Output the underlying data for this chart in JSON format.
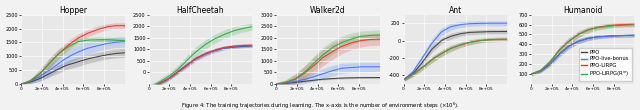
{
  "subplots": [
    {
      "title": "Hopper",
      "xlim": [
        0,
        1000000
      ],
      "ylim": [
        0,
        2500
      ],
      "yticks": [
        0,
        500,
        1000,
        1500,
        2000,
        2500
      ],
      "lines": {
        "PPO": {
          "color": "#444444",
          "mean": [
            0,
            80,
            200,
            380,
            550,
            700,
            800,
            900,
            980,
            1050,
            1100,
            1120
          ],
          "shade": [
            0,
            60,
            100,
            130,
            150,
            160,
            170,
            160,
            160,
            150,
            160,
            160
          ]
        },
        "PPO-live-bonus": {
          "color": "#4477ff",
          "mean": [
            0,
            100,
            280,
            500,
            750,
            980,
            1150,
            1280,
            1380,
            1450,
            1500,
            1520
          ],
          "shade": [
            0,
            80,
            150,
            200,
            230,
            250,
            240,
            220,
            200,
            190,
            190,
            190
          ]
        },
        "PPO-LIRPG": {
          "color": "#ee3333",
          "mean": [
            0,
            120,
            380,
            750,
            1100,
            1400,
            1650,
            1820,
            1950,
            2050,
            2100,
            2100
          ],
          "shade": [
            0,
            80,
            150,
            200,
            180,
            160,
            140,
            130,
            120,
            110,
            110,
            110
          ]
        },
        "PPO-LIRPG(Rin)": {
          "color": "#33aa44",
          "mean": [
            0,
            120,
            380,
            750,
            1100,
            1350,
            1520,
            1580,
            1600,
            1600,
            1580,
            1560
          ],
          "shade": [
            0,
            80,
            140,
            160,
            150,
            130,
            110,
            100,
            90,
            90,
            90,
            90
          ]
        }
      }
    },
    {
      "title": "HalfCheetah",
      "xlim": [
        0,
        1000000
      ],
      "ylim": [
        -500,
        2500
      ],
      "yticks": [
        0,
        500,
        1000,
        1500,
        2000,
        2500
      ],
      "lines": {
        "PPO": {
          "color": "#444444",
          "mean": [
            -650,
            -500,
            -300,
            0,
            300,
            600,
            800,
            950,
            1050,
            1100,
            1130,
            1150
          ],
          "shade": [
            30,
            40,
            50,
            60,
            70,
            70,
            70,
            60,
            60,
            60,
            60,
            60
          ]
        },
        "PPO-live-bonus": {
          "color": "#4477ff",
          "mean": [
            -650,
            -500,
            -300,
            0,
            300,
            600,
            800,
            950,
            1060,
            1120,
            1150,
            1160
          ],
          "shade": [
            80,
            90,
            100,
            110,
            120,
            120,
            110,
            100,
            90,
            85,
            80,
            80
          ]
        },
        "PPO-LIRPG": {
          "color": "#ee3333",
          "mean": [
            -650,
            -500,
            -300,
            0,
            300,
            600,
            820,
            970,
            1080,
            1140,
            1170,
            1180
          ],
          "shade": [
            50,
            60,
            70,
            80,
            90,
            90,
            80,
            70,
            65,
            60,
            60,
            60
          ]
        },
        "PPO-LIRPG(Rin)": {
          "color": "#33aa44",
          "mean": [
            -650,
            -450,
            -200,
            100,
            500,
            900,
            1200,
            1450,
            1650,
            1800,
            1900,
            1980
          ],
          "shade": [
            100,
            130,
            160,
            180,
            200,
            210,
            200,
            190,
            180,
            170,
            160,
            150
          ]
        }
      }
    },
    {
      "title": "Walker2d",
      "xlim": [
        0,
        1000000
      ],
      "ylim": [
        0,
        3000
      ],
      "yticks": [
        0,
        500,
        1000,
        1500,
        2000,
        2500,
        3000
      ],
      "lines": {
        "PPO": {
          "color": "#444444",
          "mean": [
            0,
            30,
            70,
            120,
            170,
            210,
            240,
            260,
            270,
            280,
            280,
            280
          ],
          "shade": [
            20,
            25,
            30,
            35,
            35,
            35,
            35,
            35,
            35,
            35,
            35,
            35
          ]
        },
        "PPO-live-bonus": {
          "color": "#4477ff",
          "mean": [
            0,
            40,
            100,
            200,
            320,
            450,
            580,
            680,
            720,
            740,
            740,
            740
          ],
          "shade": [
            60,
            100,
            150,
            180,
            200,
            220,
            230,
            220,
            200,
            200,
            200,
            200
          ]
        },
        "PPO-LIRPG": {
          "color": "#ee3333",
          "mean": [
            0,
            60,
            200,
            450,
            800,
            1150,
            1420,
            1630,
            1780,
            1870,
            1920,
            1940
          ],
          "shade": [
            60,
            120,
            220,
            310,
            350,
            360,
            350,
            320,
            290,
            270,
            260,
            260
          ]
        },
        "PPO-LIRPG(Rin)": {
          "color": "#33aa44",
          "mean": [
            0,
            70,
            230,
            520,
            900,
            1280,
            1580,
            1800,
            1960,
            2060,
            2100,
            2120
          ],
          "shade": [
            60,
            110,
            190,
            270,
            300,
            310,
            290,
            270,
            250,
            230,
            220,
            220
          ]
        }
      }
    },
    {
      "title": "Ant",
      "xlim": [
        0,
        1000000
      ],
      "ylim": [
        -500,
        300
      ],
      "yticks": [
        -400,
        -200,
        0,
        200
      ],
      "lines": {
        "PPO": {
          "color": "#444444",
          "mean": [
            -450,
            -380,
            -250,
            -100,
            0,
            50,
            80,
            95,
            100,
            105,
            105,
            105
          ],
          "shade": [
            20,
            25,
            30,
            35,
            35,
            35,
            30,
            25,
            25,
            25,
            25,
            25
          ]
        },
        "PPO-live-bonus": {
          "color": "#4477ff",
          "mean": [
            -450,
            -360,
            -200,
            -30,
            100,
            160,
            185,
            195,
            200,
            200,
            200,
            200
          ],
          "shade": [
            20,
            30,
            40,
            45,
            45,
            40,
            35,
            30,
            28,
            28,
            28,
            28
          ]
        },
        "PPO-LIRPG": {
          "color": "#ee3333",
          "mean": [
            -450,
            -390,
            -310,
            -220,
            -150,
            -90,
            -50,
            -20,
            0,
            10,
            15,
            15
          ],
          "shade": [
            20,
            25,
            30,
            35,
            35,
            35,
            30,
            28,
            26,
            25,
            25,
            25
          ]
        },
        "PPO-LIRPG(Rin)": {
          "color": "#33aa44",
          "mean": [
            -450,
            -390,
            -310,
            -220,
            -150,
            -90,
            -50,
            -20,
            0,
            10,
            15,
            15
          ],
          "shade": [
            20,
            25,
            30,
            35,
            35,
            35,
            30,
            28,
            26,
            25,
            25,
            25
          ]
        }
      }
    },
    {
      "title": "Humanoid",
      "xlim": [
        0,
        1000000
      ],
      "ylim": [
        0,
        700
      ],
      "yticks": [
        100,
        200,
        300,
        400,
        500,
        600,
        700
      ],
      "lines": {
        "PPO": {
          "color": "#444444",
          "mean": [
            100,
            130,
            200,
            300,
            380,
            430,
            460,
            475,
            482,
            487,
            490,
            492
          ],
          "shade": [
            10,
            15,
            20,
            25,
            25,
            25,
            22,
            20,
            18,
            17,
            17,
            17
          ]
        },
        "PPO-live-bonus": {
          "color": "#4477ff",
          "mean": [
            100,
            130,
            200,
            300,
            380,
            430,
            460,
            475,
            482,
            487,
            490,
            492
          ],
          "shade": [
            10,
            15,
            20,
            25,
            25,
            25,
            22,
            20,
            18,
            17,
            17,
            17
          ]
        },
        "PPO-LIRPG": {
          "color": "#ee3333",
          "mean": [
            100,
            135,
            220,
            340,
            430,
            500,
            545,
            572,
            587,
            596,
            600,
            602
          ],
          "shade": [
            15,
            20,
            28,
            35,
            35,
            32,
            28,
            25,
            23,
            21,
            20,
            20
          ]
        },
        "PPO-LIRPG(Rin)": {
          "color": "#33aa44",
          "mean": [
            100,
            135,
            220,
            340,
            430,
            498,
            542,
            568,
            582,
            590,
            594,
            596
          ],
          "shade": [
            15,
            20,
            28,
            35,
            35,
            32,
            28,
            25,
            23,
            21,
            20,
            20
          ]
        }
      }
    }
  ],
  "legend_order": [
    "PPO",
    "PPO-live-bonus",
    "PPO-LIRPG",
    "PPO-LIRPG(Rin)"
  ],
  "legend_labels": [
    "PPO",
    "PPO-live-bonus",
    "PPO-LIRPG",
    "PPO-LIRPG(R^{in})"
  ],
  "legend_colors": [
    "#444444",
    "#4477ff",
    "#ee3333",
    "#33aa44"
  ],
  "bg_color": "#e8e8e8",
  "fig_bg": "#f2f2f2"
}
